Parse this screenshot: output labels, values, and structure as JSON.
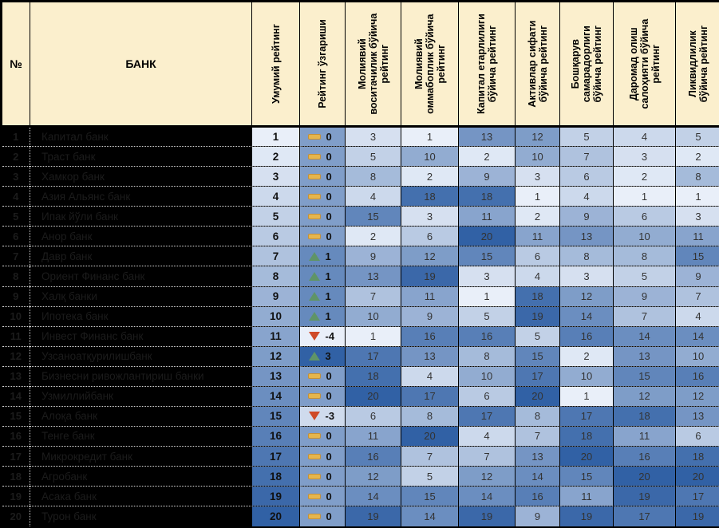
{
  "colors": {
    "header_bg": "#FBEFCD",
    "outer_border": "#000000",
    "scale_light": "#E9EFF9",
    "scale_dark": "#3161A5",
    "hidden_cell_bg": "#000000",
    "hidden_cell_text": "#1C1C1C",
    "icon_flat": "#E5B54D",
    "icon_flat_border": "#C49038",
    "icon_up": "#5F9467",
    "icon_down": "#CF4A28"
  },
  "icons": {
    "flat": "dash-no-change-icon",
    "up": "up-triangle-icon",
    "down": "down-triangle-icon"
  },
  "table": {
    "headers": {
      "num": "№",
      "bank": "БАНК",
      "overall": "Умумий рейтинг",
      "change": "Рейтинг ўзгариши",
      "metrics": [
        "Молиявий воситачилик бўйича рейтинг",
        "Молиявий оммабоплик бўйича рейтинг",
        "Капитал етарлилиги бўйича рейтинг",
        "Активлар сифати бўйича рейтинг",
        "Бошқарув самарадорлиги бўйича рейтинг",
        "Даромад олиш салоҳияти бўйича рейтинг",
        "Ликвидлилик бўйича рейтинг"
      ]
    },
    "scale": {
      "value_min": 1,
      "value_max": 20,
      "change_min": -4,
      "change_max": 3
    },
    "rows": [
      {
        "num": "1",
        "bank": "Капитал банк",
        "overall": 1,
        "change": 0,
        "direction": "flat",
        "values": [
          3,
          1,
          13,
          12,
          5,
          4,
          5
        ]
      },
      {
        "num": "2",
        "bank": "Траст банк",
        "overall": 2,
        "change": 0,
        "direction": "flat",
        "values": [
          5,
          10,
          2,
          10,
          7,
          3,
          2
        ]
      },
      {
        "num": "3",
        "bank": "Хамкор банк",
        "overall": 3,
        "change": 0,
        "direction": "flat",
        "values": [
          8,
          2,
          9,
          3,
          6,
          2,
          8
        ]
      },
      {
        "num": "4",
        "bank": "Азия Альянс банк",
        "overall": 4,
        "change": 0,
        "direction": "flat",
        "values": [
          4,
          18,
          18,
          1,
          4,
          1,
          1
        ]
      },
      {
        "num": "5",
        "bank": "Ипак йўли банк",
        "overall": 5,
        "change": 0,
        "direction": "flat",
        "values": [
          15,
          3,
          11,
          2,
          9,
          6,
          3
        ]
      },
      {
        "num": "6",
        "bank": "Анор банк",
        "overall": 6,
        "change": 0,
        "direction": "flat",
        "values": [
          2,
          6,
          20,
          11,
          13,
          10,
          11
        ]
      },
      {
        "num": "7",
        "bank": "Давр банк",
        "overall": 7,
        "change": 1,
        "direction": "up",
        "values": [
          9,
          12,
          15,
          6,
          8,
          8,
          15
        ]
      },
      {
        "num": "8",
        "bank": "Ориент Финанс банк",
        "overall": 8,
        "change": 1,
        "direction": "up",
        "values": [
          13,
          19,
          3,
          4,
          3,
          5,
          9
        ]
      },
      {
        "num": "9",
        "bank": "Халқ банки",
        "overall": 9,
        "change": 1,
        "direction": "up",
        "values": [
          7,
          11,
          1,
          18,
          12,
          9,
          7
        ]
      },
      {
        "num": "10",
        "bank": "Ипотека банк",
        "overall": 10,
        "change": 1,
        "direction": "up",
        "values": [
          10,
          9,
          5,
          19,
          14,
          7,
          4
        ]
      },
      {
        "num": "11",
        "bank": "Инвест Финанс банк",
        "overall": 11,
        "change": -4,
        "direction": "down",
        "values": [
          1,
          16,
          16,
          5,
          16,
          14,
          14
        ]
      },
      {
        "num": "12",
        "bank": "Узсаноатқурилишбанк",
        "overall": 12,
        "change": 3,
        "direction": "up",
        "values": [
          17,
          13,
          8,
          15,
          2,
          13,
          10
        ]
      },
      {
        "num": "13",
        "bank": "Бизнесни ривожлантириш банки",
        "overall": 13,
        "change": 0,
        "direction": "flat",
        "values": [
          18,
          4,
          10,
          17,
          10,
          15,
          16
        ]
      },
      {
        "num": "14",
        "bank": "Узмиллийбанк",
        "overall": 14,
        "change": 0,
        "direction": "flat",
        "values": [
          20,
          17,
          6,
          20,
          1,
          12,
          12
        ]
      },
      {
        "num": "15",
        "bank": "Алоқа банк",
        "overall": 15,
        "change": -3,
        "direction": "down",
        "values": [
          6,
          8,
          17,
          8,
          17,
          18,
          13
        ]
      },
      {
        "num": "16",
        "bank": "Тенге банк",
        "overall": 16,
        "change": 0,
        "direction": "flat",
        "values": [
          11,
          20,
          4,
          7,
          18,
          11,
          6
        ]
      },
      {
        "num": "17",
        "bank": "Микрокредит банк",
        "overall": 17,
        "change": 0,
        "direction": "flat",
        "values": [
          16,
          7,
          7,
          13,
          20,
          16,
          18
        ]
      },
      {
        "num": "18",
        "bank": "Агробанк",
        "overall": 18,
        "change": 0,
        "direction": "flat",
        "values": [
          12,
          5,
          12,
          14,
          15,
          20,
          20
        ]
      },
      {
        "num": "19",
        "bank": "Асака банк",
        "overall": 19,
        "change": 0,
        "direction": "flat",
        "values": [
          14,
          15,
          14,
          16,
          11,
          19,
          17
        ]
      },
      {
        "num": "20",
        "bank": "Турон банк",
        "overall": 20,
        "change": 0,
        "direction": "flat",
        "values": [
          19,
          14,
          19,
          9,
          19,
          17,
          19
        ]
      }
    ]
  }
}
